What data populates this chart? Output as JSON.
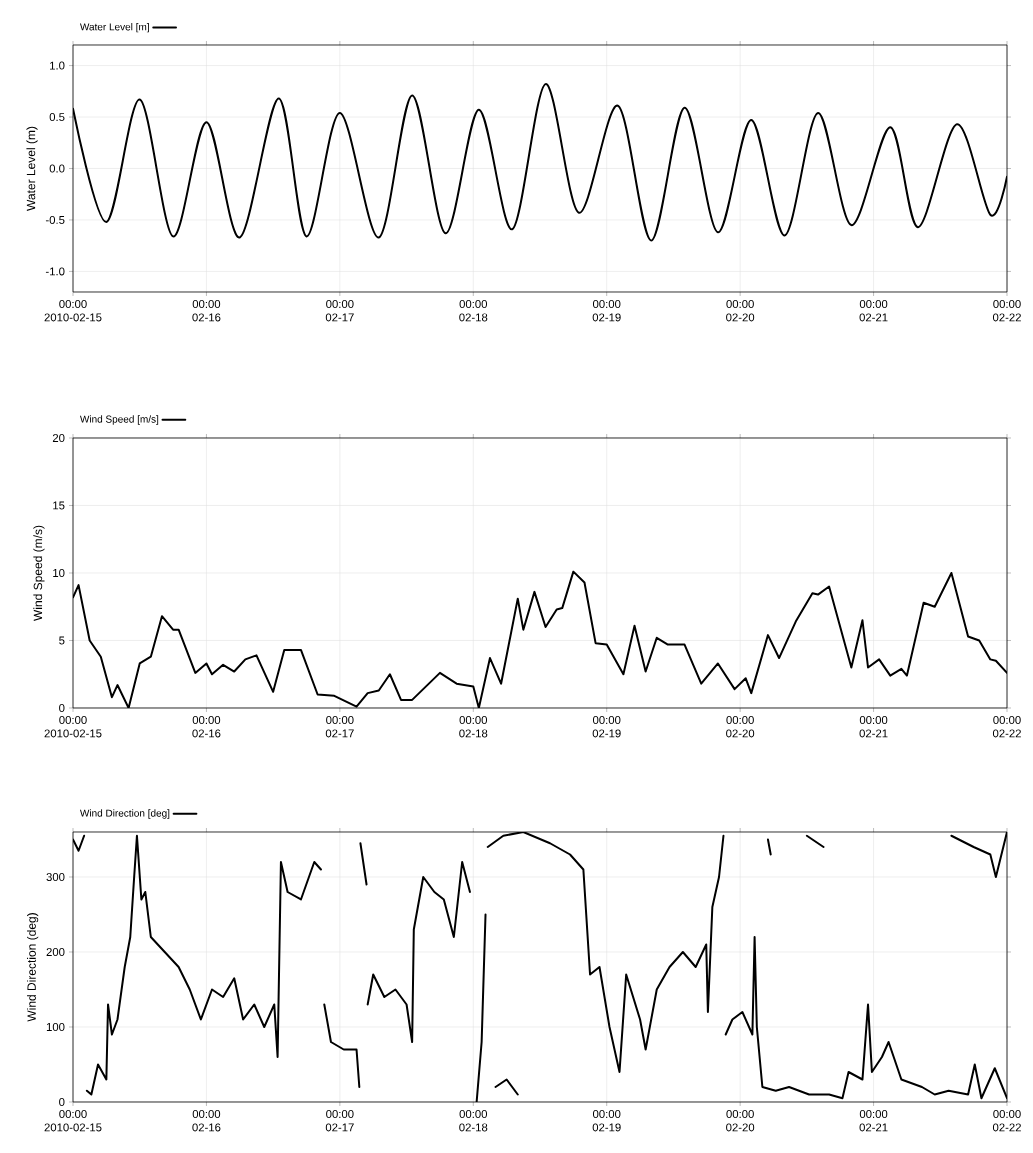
{
  "chart_data": [
    {
      "type": "line",
      "ylabel": "Water Level (m)",
      "xlim": [
        "2010-02-15T00:00",
        "2010-02-22T00:00"
      ],
      "ylim": [
        -1.2,
        1.2
      ],
      "grid": true,
      "legend": "top left",
      "xticks": [
        {
          "value": "2010-02-15T00:00",
          "label": "00:00 2010-02-15"
        },
        {
          "value": "2010-02-16T00:00",
          "label": "00:00 02-16"
        },
        {
          "value": "2010-02-17T00:00",
          "label": "00:00 02-17"
        },
        {
          "value": "2010-02-18T00:00",
          "label": "00:00 02-18"
        },
        {
          "value": "2010-02-19T00:00",
          "label": "00:00 02-19"
        },
        {
          "value": "2010-02-20T00:00",
          "label": "00:00 02-20"
        },
        {
          "value": "2010-02-21T00:00",
          "label": "00:00 02-21"
        },
        {
          "value": "2010-02-22T00:00",
          "label": "00:00 02-22"
        }
      ],
      "yticks": [
        {
          "value": -1,
          "label": "-1.0"
        },
        {
          "value": -0.5,
          "label": "-0.5"
        },
        {
          "value": 0,
          "label": "0.0"
        },
        {
          "value": 0.5,
          "label": "0.5"
        },
        {
          "value": 1,
          "label": "1.0"
        }
      ],
      "series": [
        {
          "name": "Water Level [m]",
          "color": "#000000",
          "x": [
            "2010-02-15T00:00",
            "2010-02-15T06:00",
            "2010-02-15T12:00",
            "2010-02-15T18:00",
            "2010-02-16T00:00",
            "2010-02-16T06:00",
            "2010-02-16T13:00",
            "2010-02-16T18:00",
            "2010-02-17T00:00",
            "2010-02-17T07:00",
            "2010-02-17T13:00",
            "2010-02-17T19:00",
            "2010-02-18T01:00",
            "2010-02-18T07:00",
            "2010-02-18T13:00",
            "2010-02-18T19:00",
            "2010-02-19T02:00",
            "2010-02-19T08:00",
            "2010-02-19T14:00",
            "2010-02-19T20:00",
            "2010-02-20T02:00",
            "2010-02-20T08:00",
            "2010-02-20T14:00",
            "2010-02-20T20:00",
            "2010-02-21T03:00",
            "2010-02-21T08:00",
            "2010-02-21T15:00",
            "2010-02-21T21:00",
            "2010-02-22T00:00"
          ],
          "values": [
            0.58,
            -0.52,
            0.67,
            -0.66,
            0.45,
            -0.67,
            0.68,
            -0.66,
            0.54,
            -0.67,
            0.71,
            -0.63,
            0.57,
            -0.59,
            0.82,
            -0.43,
            0.61,
            -0.7,
            0.59,
            -0.62,
            0.47,
            -0.65,
            0.54,
            -0.55,
            0.4,
            -0.57,
            0.43,
            -0.45,
            -0.08
          ]
        }
      ]
    },
    {
      "type": "line",
      "ylabel": "Wind Speed (m/s)",
      "xlim": [
        "2010-02-15T00:00",
        "2010-02-22T00:00"
      ],
      "ylim": [
        0,
        20
      ],
      "grid": true,
      "legend": "top left",
      "xticks": [
        {
          "value": "2010-02-15T00:00",
          "label": "00:00 2010-02-15"
        },
        {
          "value": "2010-02-16T00:00",
          "label": "00:00 02-16"
        },
        {
          "value": "2010-02-17T00:00",
          "label": "00:00 02-17"
        },
        {
          "value": "2010-02-18T00:00",
          "label": "00:00 02-18"
        },
        {
          "value": "2010-02-19T00:00",
          "label": "00:00 02-19"
        },
        {
          "value": "2010-02-20T00:00",
          "label": "00:00 02-20"
        },
        {
          "value": "2010-02-21T00:00",
          "label": "00:00 02-21"
        },
        {
          "value": "2010-02-22T00:00",
          "label": "00:00 02-22"
        }
      ],
      "yticks": [
        0,
        5,
        10,
        15,
        20
      ],
      "series": [
        {
          "name": "Wind Speed [m/s]",
          "color": "#000000",
          "x": [
            "2010-02-15T00:00",
            "2010-02-15T01:00",
            "2010-02-15T03:00",
            "2010-02-15T05:00",
            "2010-02-15T07:00",
            "2010-02-15T08:00",
            "2010-02-15T10:00",
            "2010-02-15T12:00",
            "2010-02-15T14:00",
            "2010-02-15T16:00",
            "2010-02-15T18:00",
            "2010-02-15T19:00",
            "2010-02-15T22:00",
            "2010-02-16T00:00",
            "2010-02-16T01:00",
            "2010-02-16T03:00",
            "2010-02-16T05:00",
            "2010-02-16T07:00",
            "2010-02-16T09:00",
            "2010-02-16T12:00",
            "2010-02-16T14:00",
            "2010-02-16T17:00",
            "2010-02-16T20:00",
            "2010-02-16T23:00",
            "2010-02-17T03:00",
            "2010-02-17T05:00",
            "2010-02-17T07:00",
            "2010-02-17T09:00",
            "2010-02-17T11:00",
            "2010-02-17T13:00",
            "2010-02-17T18:00",
            "2010-02-17T21:00",
            "2010-02-18T00:00",
            "2010-02-18T01:00",
            "2010-02-18T03:00",
            "2010-02-18T05:00",
            "2010-02-18T08:00",
            "2010-02-18T09:00",
            "2010-02-18T11:00",
            "2010-02-18T13:00",
            "2010-02-18T15:00",
            "2010-02-18T16:00",
            "2010-02-18T18:00",
            "2010-02-18T20:00",
            "2010-02-18T22:00",
            "2010-02-19T00:00",
            "2010-02-19T03:00",
            "2010-02-19T05:00",
            "2010-02-19T07:00",
            "2010-02-19T09:00",
            "2010-02-19T11:00",
            "2010-02-19T14:00",
            "2010-02-19T17:00",
            "2010-02-19T20:00",
            "2010-02-19T23:00",
            "2010-02-20T01:00",
            "2010-02-20T02:00",
            "2010-02-20T05:00",
            "2010-02-20T07:00",
            "2010-02-20T10:00",
            "2010-02-20T13:00",
            "2010-02-20T14:00",
            "2010-02-20T16:00",
            "2010-02-20T18:00",
            "2010-02-20T20:00",
            "2010-02-20T22:00",
            "2010-02-20T23:00",
            "2010-02-21T01:00",
            "2010-02-21T03:00",
            "2010-02-21T05:00",
            "2010-02-21T06:00",
            "2010-02-21T09:00",
            "2010-02-21T11:00",
            "2010-02-21T14:00",
            "2010-02-21T17:00",
            "2010-02-21T19:00",
            "2010-02-21T21:00",
            "2010-02-21T22:00",
            "2010-02-22T00:00"
          ],
          "values": [
            8.2,
            9.1,
            5.0,
            3.8,
            0.8,
            1.7,
            0,
            3.3,
            3.8,
            6.8,
            5.8,
            5.8,
            2.6,
            3.3,
            2.5,
            3.2,
            2.7,
            3.6,
            3.9,
            1.2,
            4.3,
            4.3,
            1.0,
            0.9,
            0.1,
            1.1,
            1.3,
            2.5,
            0.6,
            0.6,
            2.6,
            1.8,
            1.6,
            0,
            3.7,
            1.8,
            8.1,
            5.8,
            8.6,
            6.0,
            7.3,
            7.4,
            10.1,
            9.3,
            4.8,
            4.7,
            2.5,
            6.1,
            2.7,
            5.2,
            4.7,
            4.7,
            1.8,
            3.3,
            1.4,
            2.2,
            1.1,
            5.4,
            3.7,
            6.4,
            8.5,
            8.4,
            9.0,
            6.0,
            3.0,
            6.5,
            3.0,
            3.6,
            2.4,
            2.9,
            2.4,
            7.8,
            7.5,
            10.0,
            5.3,
            5.0,
            3.6,
            3.5,
            2.6
          ]
        }
      ]
    },
    {
      "type": "line",
      "ylabel": "Wind Direction (deg)",
      "xlim": [
        "2010-02-15T00:00",
        "2010-02-22T00:00"
      ],
      "ylim": [
        0,
        360
      ],
      "grid": true,
      "legend": "top left",
      "xticks": [
        {
          "value": "2010-02-15T00:00",
          "label": "00:00 2010-02-15"
        },
        {
          "value": "2010-02-16T00:00",
          "label": "00:00 02-16"
        },
        {
          "value": "2010-02-17T00:00",
          "label": "00:00 02-17"
        },
        {
          "value": "2010-02-18T00:00",
          "label": "00:00 02-18"
        },
        {
          "value": "2010-02-19T00:00",
          "label": "00:00 02-19"
        },
        {
          "value": "2010-02-20T00:00",
          "label": "00:00 02-20"
        },
        {
          "value": "2010-02-21T00:00",
          "label": "00:00 02-21"
        },
        {
          "value": "2010-02-22T00:00",
          "label": "00:00 02-22"
        }
      ],
      "yticks": [
        0,
        100,
        200,
        300
      ],
      "series": [
        {
          "name": "Wind Direction [deg]",
          "color": "#000000",
          "x": [
            "2010-02-15T00:00",
            "2010-02-15T01:00",
            "2010-02-15T02:00",
            "2010-02-15T02:12",
            "2010-02-15T02:30",
            "2010-02-15T03:18",
            "2010-02-15T04:30",
            "2010-02-15T06:00",
            "2010-02-15T06:18",
            "2010-02-15T07:00",
            "2010-02-15T08:00",
            "2010-02-15T09:18",
            "2010-02-15T10:18",
            "2010-02-15T11:00",
            "2010-02-15T11:30",
            "2010-02-15T12:18",
            "2010-02-15T13:00",
            "2010-02-15T14:00",
            "2010-02-15T16:30",
            "2010-02-15T19:00",
            "2010-02-15T21:00",
            "2010-02-15T23:00",
            "2010-02-16T01:00",
            "2010-02-16T03:00",
            "2010-02-16T05:00",
            "2010-02-16T06:36",
            "2010-02-16T08:36",
            "2010-02-16T10:24",
            "2010-02-16T12:12",
            "2010-02-16T12:48",
            "2010-02-16T13:24",
            "2010-02-16T14:36",
            "2010-02-16T17:00",
            "2010-02-16T19:24",
            "2010-02-16T20:36",
            "2010-02-16T20:48",
            "2010-02-16T21:12",
            "2010-02-16T22:24",
            "2010-02-17T00:42",
            "2010-02-17T03:00",
            "2010-02-17T03:30",
            "2010-02-17T03:36",
            "2010-02-17T03:42",
            "2010-02-17T04:48",
            "2010-02-17T04:54",
            "2010-02-17T05:00",
            "2010-02-17T06:00",
            "2010-02-17T08:00",
            "2010-02-17T10:00",
            "2010-02-17T12:00",
            "2010-02-17T13:00",
            "2010-02-17T13:18",
            "2010-02-17T15:00",
            "2010-02-17T17:00",
            "2010-02-17T18:42",
            "2010-02-17T20:30",
            "2010-02-17T22:00",
            "2010-02-17T23:24",
            "2010-02-17T23:30",
            "2010-02-18T00:36",
            "2010-02-18T01:30",
            "2010-02-18T02:12",
            "2010-02-18T02:24",
            "2010-02-18T02:36",
            "2010-02-18T05:24",
            "2010-02-18T09:00",
            "2010-02-18T13:48",
            "2010-02-18T17:24",
            "2010-02-18T19:48",
            "2010-02-18T21:00",
            "2010-02-18T22:42",
            "2010-02-19T00:30",
            "2010-02-19T02:18",
            "2010-02-19T03:30",
            "2010-02-19T06:00",
            "2010-02-19T07:00",
            "2010-02-19T09:00",
            "2010-02-19T11:18",
            "2010-02-19T13:42",
            "2010-02-19T16:00",
            "2010-02-19T17:54",
            "2010-02-19T18:12",
            "2010-02-19T19:00",
            "2010-02-19T20:12",
            "2010-02-19T21:00",
            "2010-02-19T21:06",
            "2010-02-19T21:24",
            "2010-02-19T22:36",
            "2010-02-20T00:24",
            "2010-02-20T02:12",
            "2010-02-20T02:36",
            "2010-02-20T03:00",
            "2010-02-20T04:00",
            "2010-02-20T06:24",
            "2010-02-20T08:48",
            "2010-02-20T12:24",
            "2010-02-20T16:00",
            "2010-02-20T18:24",
            "2010-02-20T19:30",
            "2010-02-20T22:00",
            "2010-02-20T23:00",
            "2010-02-20T23:42",
            "2010-02-21T01:30",
            "2010-02-21T02:42",
            "2010-02-21T05:00",
            "2010-02-21T08:42",
            "2010-02-21T11:00",
            "2010-02-21T13:30",
            "2010-02-21T17:00",
            "2010-02-21T18:12",
            "2010-02-21T19:24",
            "2010-02-21T21:48",
            "2010-02-22T00:00"
          ],
          "values": [
            350,
            335,
            355,
            null,
            15,
            10,
            50,
            30,
            130,
            90,
            110,
            180,
            220,
            300,
            355,
            270,
            280,
            220,
            200,
            180,
            150,
            110,
            150,
            140,
            165,
            110,
            130,
            100,
            130,
            60,
            320,
            280,
            270,
            320,
            310,
            null,
            130,
            80,
            70,
            70,
            20,
            null,
            345,
            290,
            null,
            130,
            170,
            140,
            150,
            130,
            80,
            230,
            300,
            280,
            270,
            220,
            320,
            280,
            null,
            0,
            80,
            250,
            null,
            340,
            355,
            360,
            345,
            330,
            310,
            170,
            180,
            100,
            40,
            170,
            110,
            70,
            150,
            180,
            200,
            180,
            210,
            120,
            260,
            300,
            355,
            null,
            90,
            110,
            120,
            90,
            220,
            100,
            20,
            15,
            20,
            10,
            10,
            5,
            40,
            30,
            130,
            40,
            60,
            80,
            30,
            20,
            10,
            15,
            10,
            50,
            5,
            45,
            5
          ]
        },
        {
          "color": "#000000",
          "x": [
            "2010-02-18T04:00",
            "2010-02-18T06:00",
            "2010-02-18T08:00",
            "2010-02-18T08:06",
            "2010-02-20T05:00",
            "2010-02-20T05:30",
            "2010-02-20T05:36",
            "2010-02-20T12:00",
            "2010-02-20T15:00",
            "2010-02-20T15:06",
            "2010-02-21T14:00",
            "2010-02-21T18:00",
            "2010-02-21T21:00",
            "2010-02-21T22:00",
            "2010-02-22T00:00"
          ],
          "values": [
            20,
            30,
            10,
            null,
            350,
            330,
            null,
            355,
            340,
            null,
            355,
            340,
            330,
            300,
            360
          ]
        }
      ]
    }
  ]
}
